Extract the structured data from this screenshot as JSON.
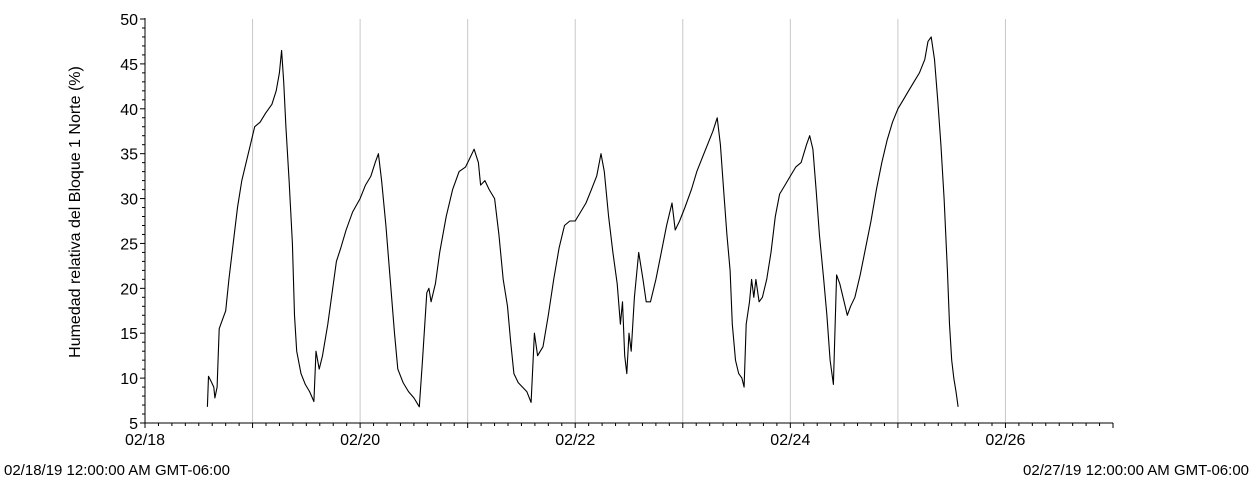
{
  "chart_data": {
    "type": "line",
    "ylabel": "Humedad relativa del Bloque 1 Norte (%)",
    "xlabel": "",
    "title": "",
    "ylim": [
      5,
      50
    ],
    "y_ticks": [
      5,
      10,
      15,
      20,
      25,
      30,
      35,
      40,
      45,
      50
    ],
    "xlim": [
      0,
      9
    ],
    "x_ticks": [
      {
        "value": 0,
        "label": "02/18"
      },
      {
        "value": 2,
        "label": "02/20"
      },
      {
        "value": 4,
        "label": "02/22"
      },
      {
        "value": 6,
        "label": "02/24"
      },
      {
        "value": 8,
        "label": "02/26"
      }
    ],
    "grid": {
      "vertical": true,
      "horizontal": false,
      "x_positions": [
        1,
        2,
        3,
        4,
        5,
        6,
        7,
        8
      ]
    },
    "range_start": "02/18/19 12:00:00 AM GMT-06:00",
    "range_end": "02/27/19 12:00:00 AM GMT-06:00",
    "colors": {
      "line": "#000000",
      "grid": "#c8c8c8",
      "axis": "#000000"
    },
    "series": [
      {
        "values": [
          [
            0.58,
            6.8
          ],
          [
            0.59,
            10.2
          ],
          [
            0.62,
            9.5
          ],
          [
            0.64,
            9.0
          ],
          [
            0.65,
            7.8
          ],
          [
            0.67,
            9.0
          ],
          [
            0.69,
            15.5
          ],
          [
            0.72,
            16.5
          ],
          [
            0.75,
            17.5
          ],
          [
            0.78,
            21
          ],
          [
            0.82,
            25
          ],
          [
            0.86,
            29
          ],
          [
            0.9,
            32
          ],
          [
            0.94,
            34
          ],
          [
            0.98,
            36
          ],
          [
            1.02,
            38
          ],
          [
            1.07,
            38.5
          ],
          [
            1.12,
            39.5
          ],
          [
            1.18,
            40.5
          ],
          [
            1.22,
            42
          ],
          [
            1.25,
            44
          ],
          [
            1.27,
            46.5
          ],
          [
            1.29,
            43
          ],
          [
            1.31,
            38
          ],
          [
            1.34,
            32
          ],
          [
            1.37,
            25
          ],
          [
            1.39,
            17
          ],
          [
            1.41,
            13
          ],
          [
            1.45,
            10.5
          ],
          [
            1.49,
            9.3
          ],
          [
            1.53,
            8.5
          ],
          [
            1.57,
            7.4
          ],
          [
            1.59,
            13
          ],
          [
            1.62,
            11
          ],
          [
            1.65,
            12.5
          ],
          [
            1.7,
            16
          ],
          [
            1.74,
            19.5
          ],
          [
            1.78,
            23
          ],
          [
            1.82,
            24.5
          ],
          [
            1.87,
            26.5
          ],
          [
            1.93,
            28.5
          ],
          [
            2.0,
            30
          ],
          [
            2.05,
            31.5
          ],
          [
            2.1,
            32.5
          ],
          [
            2.14,
            34
          ],
          [
            2.17,
            35
          ],
          [
            2.2,
            32
          ],
          [
            2.24,
            27
          ],
          [
            2.28,
            21
          ],
          [
            2.32,
            15
          ],
          [
            2.35,
            11
          ],
          [
            2.4,
            9.5
          ],
          [
            2.45,
            8.5
          ],
          [
            2.5,
            7.8
          ],
          [
            2.55,
            6.8
          ],
          [
            2.58,
            12
          ],
          [
            2.62,
            19.5
          ],
          [
            2.64,
            20
          ],
          [
            2.66,
            18.5
          ],
          [
            2.7,
            20.5
          ],
          [
            2.74,
            24
          ],
          [
            2.8,
            28
          ],
          [
            2.86,
            31
          ],
          [
            2.92,
            33
          ],
          [
            2.98,
            33.5
          ],
          [
            3.02,
            34.5
          ],
          [
            3.06,
            35.5
          ],
          [
            3.1,
            34
          ],
          [
            3.12,
            31.5
          ],
          [
            3.16,
            32
          ],
          [
            3.2,
            31
          ],
          [
            3.25,
            30
          ],
          [
            3.29,
            26
          ],
          [
            3.33,
            21
          ],
          [
            3.37,
            18
          ],
          [
            3.4,
            14
          ],
          [
            3.43,
            10.5
          ],
          [
            3.47,
            9.5
          ],
          [
            3.51,
            9.0
          ],
          [
            3.55,
            8.5
          ],
          [
            3.59,
            7.3
          ],
          [
            3.62,
            15
          ],
          [
            3.65,
            12.5
          ],
          [
            3.7,
            13.5
          ],
          [
            3.75,
            17
          ],
          [
            3.8,
            21
          ],
          [
            3.85,
            24.5
          ],
          [
            3.9,
            27
          ],
          [
            3.95,
            27.5
          ],
          [
            4.0,
            27.5
          ],
          [
            4.05,
            28.5
          ],
          [
            4.1,
            29.5
          ],
          [
            4.15,
            31
          ],
          [
            4.2,
            32.5
          ],
          [
            4.24,
            35
          ],
          [
            4.27,
            33
          ],
          [
            4.31,
            28
          ],
          [
            4.35,
            24
          ],
          [
            4.39,
            20.5
          ],
          [
            4.42,
            16
          ],
          [
            4.44,
            18.5
          ],
          [
            4.46,
            12.5
          ],
          [
            4.48,
            10.5
          ],
          [
            4.5,
            15
          ],
          [
            4.52,
            13
          ],
          [
            4.55,
            19
          ],
          [
            4.59,
            24
          ],
          [
            4.63,
            21
          ],
          [
            4.66,
            18.5
          ],
          [
            4.7,
            18.5
          ],
          [
            4.75,
            21
          ],
          [
            4.8,
            24
          ],
          [
            4.85,
            27
          ],
          [
            4.9,
            29.5
          ],
          [
            4.93,
            26.5
          ],
          [
            4.97,
            27.5
          ],
          [
            5.02,
            29
          ],
          [
            5.08,
            31
          ],
          [
            5.13,
            33
          ],
          [
            5.18,
            34.5
          ],
          [
            5.23,
            36
          ],
          [
            5.28,
            37.5
          ],
          [
            5.32,
            39
          ],
          [
            5.35,
            36
          ],
          [
            5.38,
            31
          ],
          [
            5.41,
            26
          ],
          [
            5.44,
            22
          ],
          [
            5.46,
            16
          ],
          [
            5.49,
            12
          ],
          [
            5.52,
            10.5
          ],
          [
            5.55,
            10.0
          ],
          [
            5.57,
            9.0
          ],
          [
            5.59,
            16
          ],
          [
            5.62,
            18.5
          ],
          [
            5.64,
            21
          ],
          [
            5.66,
            19
          ],
          [
            5.68,
            21
          ],
          [
            5.71,
            18.5
          ],
          [
            5.74,
            19
          ],
          [
            5.78,
            21
          ],
          [
            5.82,
            24
          ],
          [
            5.86,
            28
          ],
          [
            5.9,
            30.5
          ],
          [
            5.95,
            31.5
          ],
          [
            6.0,
            32.5
          ],
          [
            6.05,
            33.5
          ],
          [
            6.1,
            34
          ],
          [
            6.15,
            36
          ],
          [
            6.18,
            37
          ],
          [
            6.21,
            35.5
          ],
          [
            6.24,
            31
          ],
          [
            6.27,
            26
          ],
          [
            6.31,
            21
          ],
          [
            6.34,
            17
          ],
          [
            6.37,
            12
          ],
          [
            6.4,
            9.3
          ],
          [
            6.43,
            21.5
          ],
          [
            6.46,
            20.5
          ],
          [
            6.5,
            18.5
          ],
          [
            6.53,
            17
          ],
          [
            6.56,
            18
          ],
          [
            6.6,
            19
          ],
          [
            6.65,
            21.5
          ],
          [
            6.7,
            24.5
          ],
          [
            6.75,
            27.5
          ],
          [
            6.8,
            31
          ],
          [
            6.85,
            34
          ],
          [
            6.9,
            36.5
          ],
          [
            6.95,
            38.5
          ],
          [
            7.0,
            40
          ],
          [
            7.05,
            41
          ],
          [
            7.1,
            42
          ],
          [
            7.15,
            43
          ],
          [
            7.2,
            44
          ],
          [
            7.25,
            45.5
          ],
          [
            7.28,
            47.5
          ],
          [
            7.31,
            48
          ],
          [
            7.34,
            45.5
          ],
          [
            7.37,
            41
          ],
          [
            7.4,
            36
          ],
          [
            7.43,
            30
          ],
          [
            7.46,
            22
          ],
          [
            7.48,
            16
          ],
          [
            7.5,
            12
          ],
          [
            7.52,
            10
          ],
          [
            7.54,
            8.5
          ],
          [
            7.56,
            6.8
          ]
        ]
      }
    ]
  }
}
